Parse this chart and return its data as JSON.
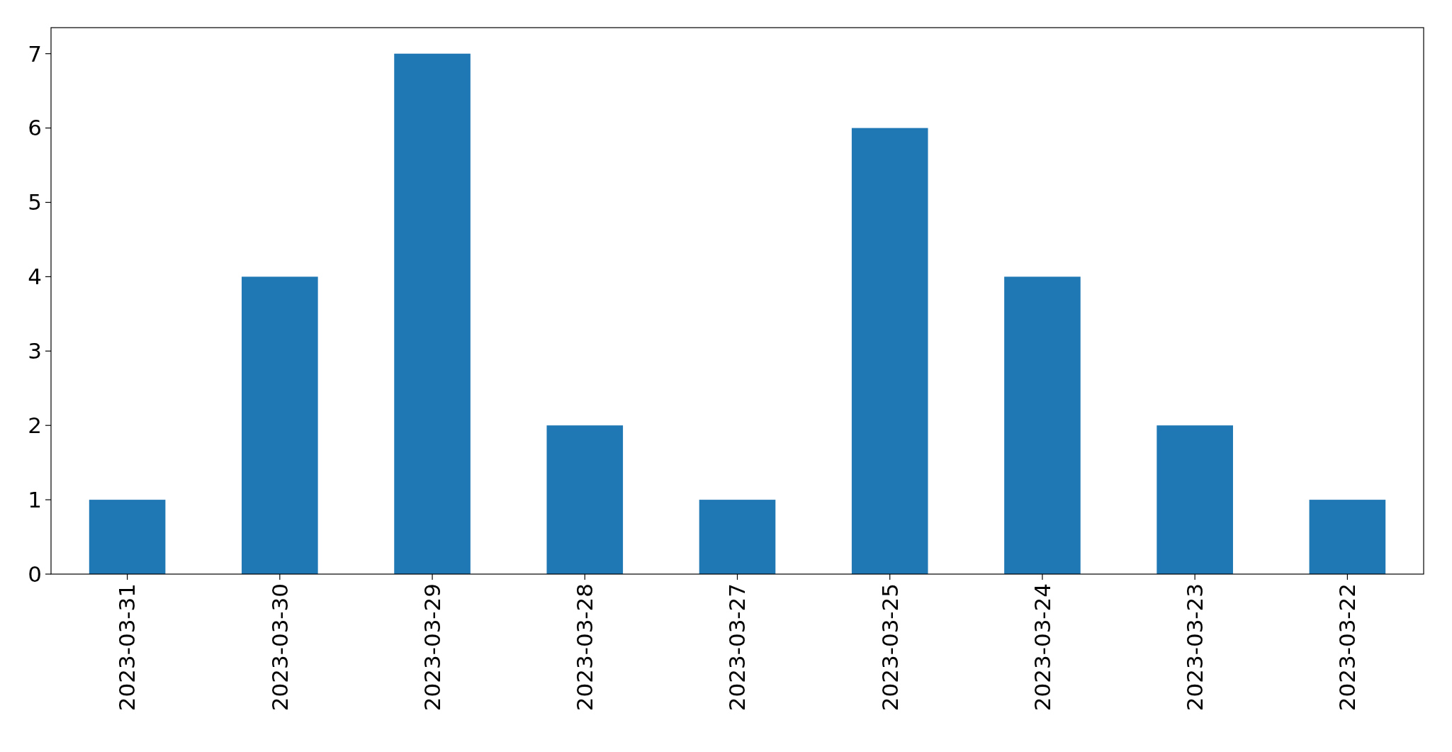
{
  "chart_data": {
    "type": "bar",
    "categories": [
      "2023-03-31",
      "2023-03-30",
      "2023-03-29",
      "2023-03-28",
      "2023-03-27",
      "2023-03-25",
      "2023-03-24",
      "2023-03-23",
      "2023-03-22"
    ],
    "values": [
      1,
      4,
      7,
      2,
      1,
      6,
      4,
      2,
      1
    ],
    "color": "#1f77b4",
    "ylim": [
      0,
      7.35
    ],
    "yticks": [
      0,
      1,
      2,
      3,
      4,
      5,
      6,
      7
    ]
  }
}
